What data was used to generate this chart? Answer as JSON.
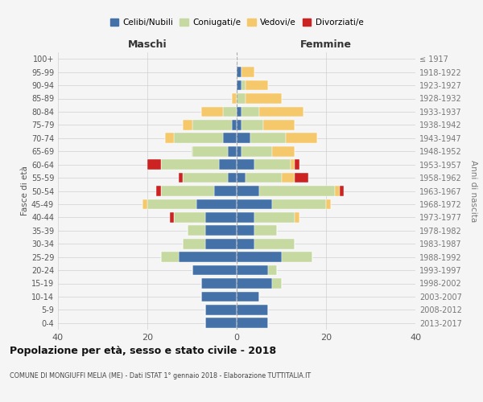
{
  "age_groups": [
    "0-4",
    "5-9",
    "10-14",
    "15-19",
    "20-24",
    "25-29",
    "30-34",
    "35-39",
    "40-44",
    "45-49",
    "50-54",
    "55-59",
    "60-64",
    "65-69",
    "70-74",
    "75-79",
    "80-84",
    "85-89",
    "90-94",
    "95-99",
    "100+"
  ],
  "birth_years": [
    "2013-2017",
    "2008-2012",
    "2003-2007",
    "1998-2002",
    "1993-1997",
    "1988-1992",
    "1983-1987",
    "1978-1982",
    "1973-1977",
    "1968-1972",
    "1963-1967",
    "1958-1962",
    "1953-1957",
    "1948-1952",
    "1943-1947",
    "1938-1942",
    "1933-1937",
    "1928-1932",
    "1923-1927",
    "1918-1922",
    "≤ 1917"
  ],
  "colors": {
    "celibi": "#4472a8",
    "coniugati": "#c5d9a0",
    "vedovi": "#f5c96b",
    "divorziati": "#cc2222"
  },
  "maschi": {
    "celibi": [
      7,
      7,
      8,
      8,
      10,
      13,
      7,
      7,
      7,
      9,
      5,
      2,
      4,
      2,
      3,
      1,
      0,
      0,
      0,
      0,
      0
    ],
    "coniugati": [
      0,
      0,
      0,
      0,
      0,
      4,
      5,
      4,
      7,
      11,
      12,
      10,
      13,
      8,
      11,
      9,
      3,
      0,
      0,
      0,
      0
    ],
    "vedovi": [
      0,
      0,
      0,
      0,
      0,
      0,
      0,
      0,
      0,
      1,
      0,
      0,
      0,
      0,
      2,
      2,
      5,
      1,
      0,
      0,
      0
    ],
    "divorziati": [
      0,
      0,
      0,
      0,
      0,
      0,
      0,
      0,
      1,
      0,
      1,
      1,
      3,
      0,
      0,
      0,
      0,
      0,
      0,
      0,
      0
    ]
  },
  "femmine": {
    "nubili": [
      7,
      7,
      5,
      8,
      7,
      10,
      4,
      4,
      4,
      8,
      5,
      2,
      4,
      1,
      3,
      1,
      1,
      0,
      1,
      1,
      0
    ],
    "coniugate": [
      0,
      0,
      0,
      2,
      2,
      7,
      9,
      5,
      9,
      12,
      17,
      8,
      8,
      7,
      8,
      5,
      4,
      2,
      1,
      0,
      0
    ],
    "vedove": [
      0,
      0,
      0,
      0,
      0,
      0,
      0,
      0,
      1,
      1,
      1,
      3,
      1,
      5,
      7,
      7,
      10,
      8,
      5,
      3,
      0
    ],
    "divorziate": [
      0,
      0,
      0,
      0,
      0,
      0,
      0,
      0,
      0,
      0,
      1,
      3,
      1,
      0,
      0,
      0,
      0,
      0,
      0,
      0,
      0
    ]
  },
  "title": "Popolazione per età, sesso e stato civile - 2018",
  "subtitle": "COMUNE DI MONGIUFFI MELIA (ME) - Dati ISTAT 1° gennaio 2018 - Elaborazione TUTTITALIA.IT",
  "xlabel_left": "Maschi",
  "xlabel_right": "Femmine",
  "ylabel_left": "Fasce di età",
  "ylabel_right": "Anni di nascita",
  "xlim": 40,
  "background_color": "#f5f5f5",
  "grid_color": "#cccccc"
}
